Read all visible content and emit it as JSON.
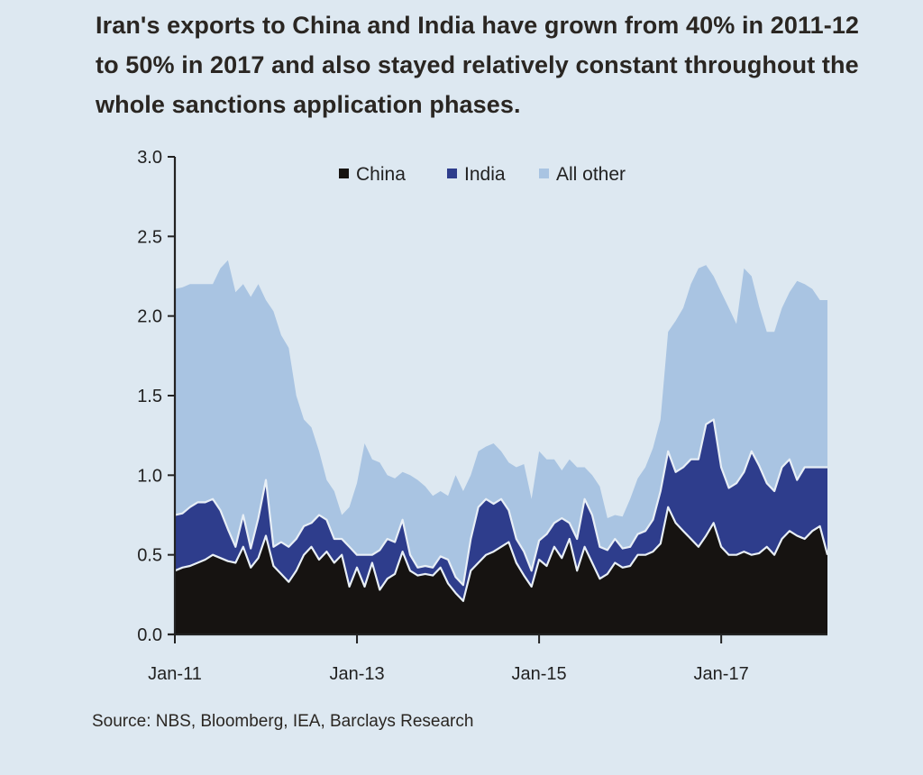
{
  "chart_data": {
    "type": "area",
    "stacked": true,
    "title": "Iran's exports to China and India have grown from 40% in 2011-12 to 50% in 2017 and also stayed relatively constant throughout the whole sanctions application phases.",
    "xlabel": "",
    "ylabel": "",
    "ylim": [
      0.0,
      3.0
    ],
    "yticks": [
      "0.0",
      "0.5",
      "1.0",
      "1.5",
      "2.0",
      "2.5",
      "3.0"
    ],
    "xticks": [
      {
        "label": "Jan-11",
        "index": 0
      },
      {
        "label": "Jan-13",
        "index": 24
      },
      {
        "label": "Jan-15",
        "index": 48
      },
      {
        "label": "Jan-17",
        "index": 72
      }
    ],
    "x_count": 87,
    "legend_position": "top-center",
    "series": [
      {
        "name": "China",
        "color": "#161311",
        "values": [
          0.4,
          0.42,
          0.43,
          0.45,
          0.47,
          0.5,
          0.48,
          0.46,
          0.45,
          0.55,
          0.42,
          0.48,
          0.62,
          0.43,
          0.38,
          0.33,
          0.4,
          0.5,
          0.55,
          0.47,
          0.52,
          0.45,
          0.5,
          0.3,
          0.42,
          0.3,
          0.45,
          0.28,
          0.35,
          0.38,
          0.52,
          0.4,
          0.37,
          0.38,
          0.37,
          0.42,
          0.32,
          0.26,
          0.21,
          0.4,
          0.45,
          0.5,
          0.52,
          0.55,
          0.58,
          0.45,
          0.37,
          0.3,
          0.47,
          0.43,
          0.55,
          0.48,
          0.6,
          0.4,
          0.55,
          0.45,
          0.35,
          0.38,
          0.45,
          0.42,
          0.43,
          0.5,
          0.5,
          0.52,
          0.57,
          0.8,
          0.7,
          0.65,
          0.6,
          0.55,
          0.62,
          0.7,
          0.55,
          0.5,
          0.5,
          0.52,
          0.5,
          0.51,
          0.55,
          0.5,
          0.6,
          0.65,
          0.62,
          0.6,
          0.65,
          0.68,
          0.5
        ]
      },
      {
        "name": "India",
        "color": "#2e3d8c",
        "values": [
          0.35,
          0.34,
          0.37,
          0.38,
          0.36,
          0.35,
          0.3,
          0.2,
          0.1,
          0.2,
          0.12,
          0.25,
          0.35,
          0.12,
          0.2,
          0.22,
          0.2,
          0.18,
          0.15,
          0.28,
          0.2,
          0.15,
          0.1,
          0.25,
          0.08,
          0.2,
          0.05,
          0.25,
          0.25,
          0.2,
          0.2,
          0.1,
          0.05,
          0.05,
          0.05,
          0.07,
          0.15,
          0.1,
          0.1,
          0.2,
          0.35,
          0.35,
          0.3,
          0.3,
          0.2,
          0.15,
          0.15,
          0.1,
          0.12,
          0.2,
          0.15,
          0.25,
          0.1,
          0.2,
          0.3,
          0.3,
          0.2,
          0.15,
          0.15,
          0.12,
          0.12,
          0.13,
          0.15,
          0.2,
          0.33,
          0.35,
          0.32,
          0.4,
          0.5,
          0.55,
          0.7,
          0.65,
          0.5,
          0.42,
          0.45,
          0.5,
          0.65,
          0.55,
          0.4,
          0.4,
          0.45,
          0.45,
          0.35,
          0.45,
          0.4,
          0.37,
          0.55
        ]
      },
      {
        "name": "All other",
        "color": "#a9c4e2",
        "values": [
          1.42,
          1.42,
          1.4,
          1.37,
          1.37,
          1.35,
          1.52,
          1.69,
          1.6,
          1.45,
          1.58,
          1.47,
          1.13,
          1.48,
          1.3,
          1.25,
          0.9,
          0.67,
          0.6,
          0.4,
          0.25,
          0.3,
          0.15,
          0.25,
          0.45,
          0.7,
          0.6,
          0.55,
          0.4,
          0.4,
          0.3,
          0.5,
          0.55,
          0.5,
          0.45,
          0.41,
          0.4,
          0.64,
          0.59,
          0.4,
          0.35,
          0.33,
          0.38,
          0.3,
          0.3,
          0.45,
          0.55,
          0.45,
          0.56,
          0.47,
          0.4,
          0.3,
          0.4,
          0.45,
          0.2,
          0.25,
          0.38,
          0.2,
          0.15,
          0.2,
          0.3,
          0.35,
          0.4,
          0.45,
          0.45,
          0.75,
          0.95,
          1.0,
          1.1,
          1.2,
          1.0,
          0.9,
          1.1,
          1.13,
          1.0,
          1.28,
          1.1,
          1.0,
          0.95,
          1.0,
          1.0,
          1.05,
          1.25,
          1.15,
          1.12,
          1.05,
          1.05
        ]
      }
    ],
    "source": "Source: NBS, Bloomberg, IEA, Barclays Research"
  },
  "colors": {
    "background": "#dde8f1",
    "china": "#161311",
    "india": "#2e3d8c",
    "other": "#a9c4e2"
  }
}
